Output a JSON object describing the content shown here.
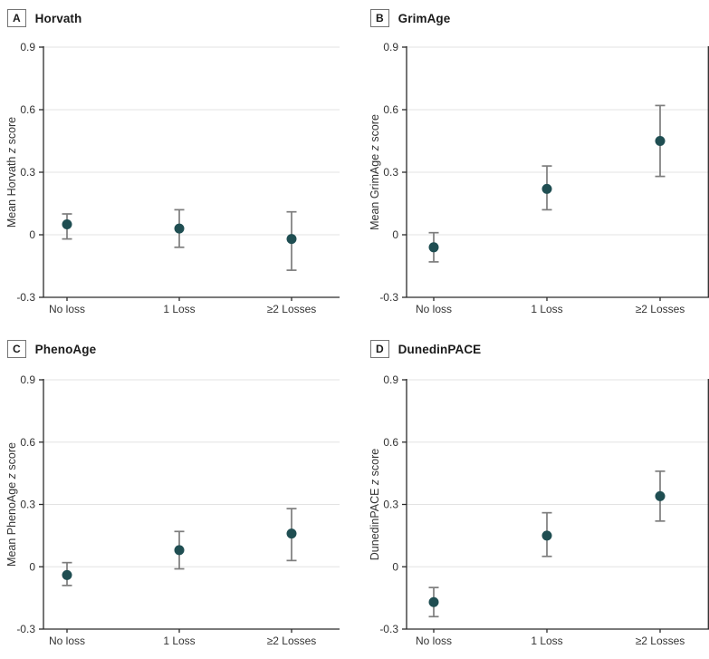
{
  "figure": {
    "x_category_labels": [
      "No loss",
      "1 Loss",
      "≥2 Losses"
    ],
    "y_tick_labels": [
      "-0.3",
      "0",
      "0.3",
      "0.6",
      "0.9"
    ],
    "colors": {
      "marker": "#1f4e52",
      "error_bar": "#7d7d7d",
      "axis": "#2b2b2b",
      "gridline": "#e3e3e3",
      "tick_text": "#333333",
      "title_text": "#1a1a1a"
    }
  },
  "chart_data": [
    {
      "type": "scatter",
      "panel_letter": "A",
      "title": "Horvath",
      "ylabel": "Mean Horvath z score",
      "xlabel": "",
      "ylim": [
        -0.3,
        0.9
      ],
      "y_ticks": [
        -0.3,
        0,
        0.3,
        0.6,
        0.9
      ],
      "y_tick_labels": [
        "-0.3",
        "0",
        "0.3",
        "0.6",
        "0.9"
      ],
      "categories": [
        "No loss",
        "1 Loss",
        "≥2 Losses"
      ],
      "values": [
        0.05,
        0.03,
        -0.02
      ],
      "ci_low": [
        -0.02,
        -0.06,
        -0.17
      ],
      "ci_high": [
        0.1,
        0.12,
        0.11
      ],
      "grid": "horizontal",
      "legend": "none"
    },
    {
      "type": "scatter",
      "panel_letter": "B",
      "title": "GrimAge",
      "ylabel": "Mean GrimAge z score",
      "xlabel": "",
      "ylim": [
        -0.3,
        0.9
      ],
      "y_ticks": [
        -0.3,
        0,
        0.3,
        0.6,
        0.9
      ],
      "y_tick_labels": [
        "-0.3",
        "0",
        "0.3",
        "0.6",
        "0.9"
      ],
      "categories": [
        "No loss",
        "1 Loss",
        "≥2 Losses"
      ],
      "values": [
        -0.06,
        0.22,
        0.45
      ],
      "ci_low": [
        -0.13,
        0.12,
        0.28
      ],
      "ci_high": [
        0.01,
        0.33,
        0.62
      ],
      "grid": "horizontal",
      "legend": "none"
    },
    {
      "type": "scatter",
      "panel_letter": "C",
      "title": "PhenoAge",
      "ylabel": "Mean PhenoAge z score",
      "xlabel": "",
      "ylim": [
        -0.3,
        0.9
      ],
      "y_ticks": [
        -0.3,
        0,
        0.3,
        0.6,
        0.9
      ],
      "y_tick_labels": [
        "-0.3",
        "0",
        "0.3",
        "0.6",
        "0.9"
      ],
      "categories": [
        "No loss",
        "1 Loss",
        "≥2 Losses"
      ],
      "values": [
        -0.04,
        0.08,
        0.16
      ],
      "ci_low": [
        -0.09,
        -0.01,
        0.03
      ],
      "ci_high": [
        0.02,
        0.17,
        0.28
      ],
      "grid": "horizontal",
      "legend": "none"
    },
    {
      "type": "scatter",
      "panel_letter": "D",
      "title": "DunedinPACE",
      "ylabel": "DunedinPACE z score",
      "xlabel": "",
      "ylim": [
        -0.3,
        0.9
      ],
      "y_ticks": [
        -0.3,
        0,
        0.3,
        0.6,
        0.9
      ],
      "y_tick_labels": [
        "-0.3",
        "0",
        "0.3",
        "0.6",
        "0.9"
      ],
      "categories": [
        "No loss",
        "1 Loss",
        "≥2 Losses"
      ],
      "values": [
        -0.17,
        0.15,
        0.34
      ],
      "ci_low": [
        -0.24,
        0.05,
        0.22
      ],
      "ci_high": [
        -0.1,
        0.26,
        0.46
      ],
      "grid": "horizontal",
      "legend": "none"
    }
  ]
}
